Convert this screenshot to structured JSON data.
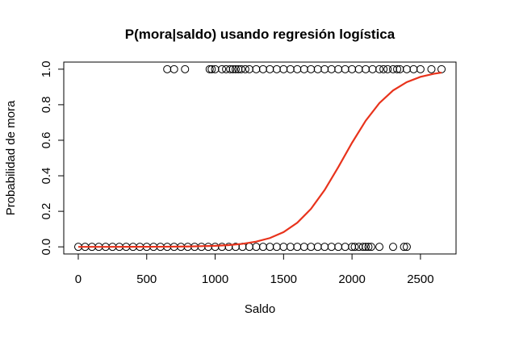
{
  "chart_data": {
    "type": "scatter",
    "title": "P(mora|saldo) usando regresión logística",
    "x_label": "Saldo",
    "y_label": "Probabilidad de mora",
    "xlim": [
      -106,
      2760
    ],
    "ylim": [
      -0.04,
      1.04
    ],
    "xticks": [
      0,
      500,
      1000,
      1500,
      2000,
      2500
    ],
    "yticks": [
      {
        "value": 0,
        "label": "0.0"
      },
      0.2,
      0.4,
      0.6,
      0.8,
      {
        "value": 1,
        "label": "1.0"
      }
    ],
    "grid": false,
    "series": [
      {
        "type": "scatter",
        "color": "#000000",
        "x": [
          650,
          700,
          780,
          960,
          975,
          1000,
          1050,
          1080,
          1110,
          1130,
          1150,
          1170,
          1190,
          1220,
          1250,
          1300,
          1350,
          1400,
          1450,
          1500,
          1550,
          1600,
          1650,
          1700,
          1750,
          1800,
          1850,
          1900,
          1950,
          2000,
          2050,
          2100,
          2150,
          2200,
          2230,
          2260,
          2300,
          2330,
          2350,
          2400,
          2450,
          2500,
          2580,
          2654
        ],
        "values": [
          1,
          1,
          1,
          1,
          1,
          1,
          1,
          1,
          1,
          1,
          1,
          1,
          1,
          1,
          1,
          1,
          1,
          1,
          1,
          1,
          1,
          1,
          1,
          1,
          1,
          1,
          1,
          1,
          1,
          1,
          1,
          1,
          1,
          1,
          1,
          1,
          1,
          1,
          1,
          1,
          1,
          1,
          1,
          1
        ]
      },
      {
        "type": "scatter",
        "color": "#000000",
        "x": [
          0,
          50,
          100,
          150,
          200,
          250,
          300,
          350,
          400,
          450,
          500,
          550,
          600,
          650,
          700,
          750,
          800,
          850,
          900,
          950,
          1000,
          1050,
          1100,
          1150,
          1200,
          1250,
          1300,
          1350,
          1400,
          1450,
          1500,
          1550,
          1600,
          1650,
          1700,
          1750,
          1800,
          1850,
          1900,
          1950,
          2000,
          2020,
          2050,
          2080,
          2100,
          2120,
          2140,
          2200,
          2300,
          2380,
          2400
        ],
        "values": [
          0,
          0,
          0,
          0,
          0,
          0,
          0,
          0,
          0,
          0,
          0,
          0,
          0,
          0,
          0,
          0,
          0,
          0,
          0,
          0,
          0,
          0,
          0,
          0,
          0,
          0,
          0,
          0,
          0,
          0,
          0,
          0,
          0,
          0,
          0,
          0,
          0,
          0,
          0,
          0,
          0,
          0,
          0,
          0,
          0,
          0,
          0,
          0,
          0,
          0,
          0
        ]
      },
      {
        "type": "line",
        "color": "#e8331c",
        "x": [
          0,
          200,
          400,
          600,
          800,
          1000,
          1100,
          1200,
          1300,
          1400,
          1500,
          1600,
          1700,
          1800,
          1900,
          2000,
          2100,
          2200,
          2300,
          2400,
          2500,
          2600,
          2654
        ],
        "values": [
          2e-05,
          7e-05,
          0.0002,
          0.00064,
          0.0019,
          0.0058,
          0.0099,
          0.0171,
          0.0293,
          0.0496,
          0.0829,
          0.1356,
          0.2137,
          0.3201,
          0.4494,
          0.5857,
          0.7101,
          0.8094,
          0.8804,
          0.9273,
          0.9568,
          0.9746,
          0.981
        ]
      }
    ]
  }
}
